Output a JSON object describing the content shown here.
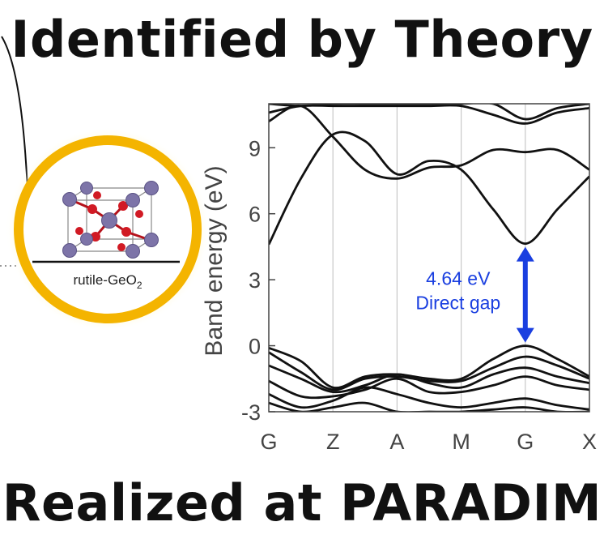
{
  "headline_top": "Identified by Theory",
  "headline_bottom": "Realized at PARADIM",
  "crystal": {
    "caption": "rutile-GeO",
    "caption_subscript": "2",
    "ring_color": "#f4b400"
  },
  "chart_data": {
    "type": "line",
    "ylabel": "Band energy (eV)",
    "xlabel": "",
    "ylim": [
      -3,
      11
    ],
    "yticks": [
      -3,
      0,
      3,
      6,
      9
    ],
    "ytick_labels": [
      "-3",
      "0",
      "3",
      "6",
      "9"
    ],
    "kpoints": [
      "G",
      "Z",
      "A",
      "M",
      "G",
      "X"
    ],
    "kpoint_positions": [
      0,
      1,
      2,
      3,
      4,
      5
    ],
    "grid": "vertical lines at k-points",
    "gap_annotation": {
      "value_label": "4.64 eV",
      "type_label": "Direct gap",
      "vbm": 0.0,
      "cbm": 4.64,
      "k": 4,
      "color": "#1a3fe0"
    },
    "bands": [
      {
        "x": [
          0,
          0.5,
          1,
          1.5,
          2,
          2.5,
          3,
          3.5,
          4,
          4.5,
          5
        ],
        "y": [
          4.6,
          7.6,
          9.6,
          9.3,
          7.8,
          8.4,
          8.0,
          6.2,
          4.64,
          6.2,
          7.7
        ]
      },
      {
        "x": [
          0,
          0.5,
          1,
          1.5,
          2,
          2.5,
          3,
          3.5,
          4,
          4.5,
          5
        ],
        "y": [
          10.2,
          10.9,
          9.5,
          8.0,
          7.6,
          8.1,
          8.2,
          8.9,
          8.8,
          8.9,
          8.0
        ]
      },
      {
        "x": [
          0,
          0.5,
          1,
          1.5,
          2,
          2.5,
          3,
          3.5,
          4,
          4.5,
          5
        ],
        "y": [
          10.6,
          10.9,
          10.9,
          10.9,
          10.9,
          10.9,
          10.9,
          10.5,
          10.1,
          10.6,
          10.8
        ]
      },
      {
        "x": [
          0,
          0.5,
          1,
          1.5,
          2,
          2.5,
          3,
          3.5,
          4,
          4.5,
          5
        ],
        "y": [
          11,
          10.9,
          11,
          11,
          11,
          11,
          11,
          11,
          10.3,
          10.8,
          11
        ]
      },
      {
        "x": [
          0,
          0.5,
          1,
          1.5,
          2,
          2.5,
          3,
          3.5,
          4,
          4.5,
          5
        ],
        "y": [
          -0.1,
          -0.7,
          -1.9,
          -1.4,
          -1.3,
          -1.5,
          -1.5,
          -0.6,
          0.0,
          -0.6,
          -1.4
        ]
      },
      {
        "x": [
          0,
          0.5,
          1,
          1.5,
          2,
          2.5,
          3,
          3.5,
          4,
          4.5,
          5
        ],
        "y": [
          -0.3,
          -1.2,
          -2.0,
          -1.5,
          -1.4,
          -1.6,
          -1.6,
          -1.0,
          -0.5,
          -0.9,
          -1.5
        ]
      },
      {
        "x": [
          0,
          0.5,
          1,
          1.5,
          2,
          2.5,
          3,
          3.5,
          4,
          4.5,
          5
        ],
        "y": [
          -0.9,
          -1.5,
          -2.1,
          -1.8,
          -1.3,
          -1.7,
          -1.9,
          -1.3,
          -1.0,
          -1.4,
          -1.7
        ]
      },
      {
        "x": [
          0,
          0.5,
          1,
          1.5,
          2,
          2.5,
          3,
          3.5,
          4,
          4.5,
          5
        ],
        "y": [
          -1.6,
          -2.3,
          -2.3,
          -2.0,
          -1.5,
          -2.1,
          -2.1,
          -1.8,
          -1.4,
          -1.8,
          -2.0
        ]
      },
      {
        "x": [
          0,
          0.5,
          1,
          1.5,
          2,
          2.5,
          3,
          3.5,
          4,
          4.5,
          5
        ],
        "y": [
          -2.2,
          -2.8,
          -2.5,
          -1.9,
          -2.2,
          -2.6,
          -2.8,
          -2.6,
          -2.4,
          -2.7,
          -2.9
        ]
      },
      {
        "x": [
          0,
          0.5,
          1,
          1.5,
          2,
          2.5,
          3,
          3.5,
          4,
          4.5,
          5
        ],
        "y": [
          -2.6,
          -3.0,
          -2.8,
          -2.6,
          -3.0,
          -3.0,
          -3.0,
          -2.9,
          -2.8,
          -3.0,
          -3.0
        ]
      }
    ]
  }
}
